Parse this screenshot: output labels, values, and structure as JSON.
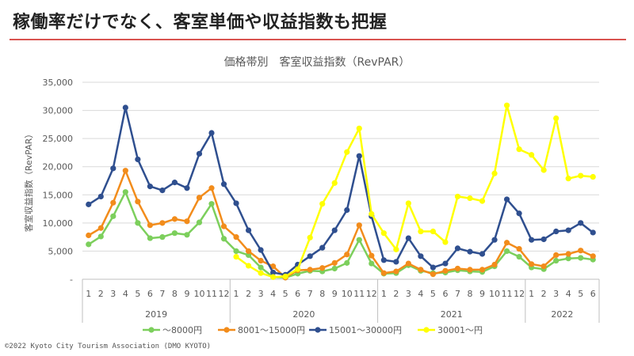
{
  "slide": {
    "title": "稼働率だけでなく、客室単価や収益指数も把握",
    "footer": "©2022 Kyoto City Tourism Association (DMO KYOTO)"
  },
  "colors": {
    "accent_rule": "#d9534f"
  },
  "chart_data": {
    "type": "line",
    "title": "価格帯別　客室収益指数（RevPAR）",
    "ylabel": "客室収益指数（RevPAR）",
    "xlabel": "",
    "ylim": [
      0,
      35000
    ],
    "yticks": [
      "-",
      "5,000",
      "10,000",
      "15,000",
      "20,000",
      "25,000",
      "30,000",
      "35,000"
    ],
    "grid": true,
    "legend_position": "bottom",
    "month_labels": [
      "1",
      "2",
      "3",
      "4",
      "5",
      "6",
      "7",
      "8",
      "9",
      "10",
      "11",
      "12",
      "1",
      "2",
      "3",
      "4",
      "5",
      "6",
      "7",
      "8",
      "9",
      "10",
      "11",
      "12",
      "1",
      "2",
      "3",
      "4",
      "5",
      "6",
      "7",
      "8",
      "9",
      "10",
      "11",
      "12",
      "1",
      "2",
      "3",
      "4",
      "5",
      "6"
    ],
    "year_groups": [
      {
        "label": "2019",
        "start": 0,
        "count": 12
      },
      {
        "label": "2020",
        "start": 12,
        "count": 12
      },
      {
        "label": "2021",
        "start": 24,
        "count": 12
      },
      {
        "label": "2022",
        "start": 36,
        "count": 6
      }
    ],
    "series": [
      {
        "name": "～8000円",
        "color": "#7ccf5c",
        "values": [
          6200,
          7600,
          11200,
          15500,
          10000,
          7300,
          7500,
          8200,
          7900,
          10100,
          13400,
          7200,
          5000,
          4300,
          2100,
          400,
          300,
          1000,
          1500,
          1400,
          1900,
          2900,
          7000,
          2800,
          1000,
          1100,
          2500,
          1500,
          1100,
          1200,
          1600,
          1400,
          1300,
          2300,
          5000,
          4000,
          2100,
          1800,
          3300,
          3700,
          3800,
          3500
        ]
      },
      {
        "name": "8001～15000円",
        "color": "#f28c1b",
        "values": [
          7800,
          9100,
          13600,
          19300,
          13800,
          9600,
          10000,
          10700,
          10300,
          14500,
          16200,
          9400,
          7500,
          5000,
          3300,
          2300,
          300,
          1600,
          1700,
          2000,
          2900,
          4400,
          9600,
          4200,
          1100,
          1400,
          2800,
          1700,
          900,
          1500,
          1900,
          1700,
          1700,
          2600,
          6500,
          5400,
          2700,
          2300,
          4300,
          4500,
          5100,
          4100
        ]
      },
      {
        "name": "15001～30000円",
        "color": "#2f4f8f",
        "values": [
          13300,
          14700,
          19700,
          30500,
          21300,
          16500,
          15800,
          17200,
          16200,
          22300,
          26000,
          16900,
          13500,
          8700,
          5200,
          1200,
          800,
          2600,
          4100,
          5600,
          8700,
          12300,
          21900,
          11200,
          3400,
          3100,
          7300,
          4100,
          2100,
          2800,
          5500,
          4900,
          4500,
          7000,
          14200,
          11700,
          7000,
          7100,
          8500,
          8700,
          10000,
          8300
        ]
      },
      {
        "name": "30001～円",
        "color": "#ffff00",
        "values": [
          null,
          null,
          null,
          null,
          null,
          null,
          null,
          null,
          null,
          null,
          null,
          null,
          4000,
          2400,
          1100,
          400,
          500,
          1800,
          7400,
          13400,
          17100,
          22600,
          26800,
          11600,
          8200,
          5300,
          13500,
          8500,
          8500,
          6600,
          14700,
          14400,
          13900,
          18800,
          30900,
          23100,
          22100,
          19400,
          28600,
          17900,
          18400,
          18200
        ]
      }
    ]
  }
}
